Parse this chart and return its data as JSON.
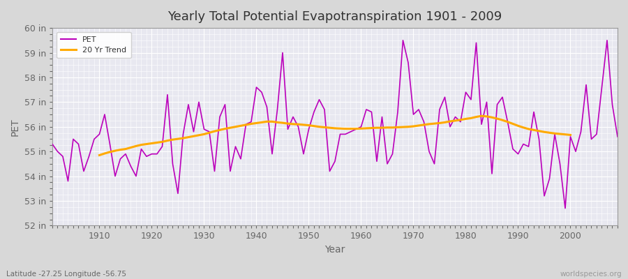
{
  "title": "Yearly Total Potential Evapotranspiration 1901 - 2009",
  "xlabel": "Year",
  "ylabel": "PET",
  "subtitle_left": "Latitude -27.25 Longitude -56.75",
  "watermark": "worldspecies.org",
  "ylim": [
    52,
    60
  ],
  "yticks": [
    52,
    53,
    54,
    55,
    56,
    57,
    58,
    59,
    60
  ],
  "ytick_labels": [
    "52 in",
    "53 in",
    "54 in",
    "55 in",
    "56 in",
    "57 in",
    "58 in",
    "59 in",
    "60 in"
  ],
  "xticks": [
    1910,
    1920,
    1930,
    1940,
    1950,
    1960,
    1970,
    1980,
    1990,
    2000
  ],
  "xlim": [
    1901,
    2009
  ],
  "pet_color": "#bb00bb",
  "trend_color": "#ffaa00",
  "fig_bg_color": "#d8d8d8",
  "plot_bg_color": "#e8e8f0",
  "grid_color": "#ffffff",
  "title_color": "#333333",
  "label_color": "#666666",
  "tick_color": "#666666",
  "years": [
    1901,
    1902,
    1903,
    1904,
    1905,
    1906,
    1907,
    1908,
    1909,
    1910,
    1911,
    1912,
    1913,
    1914,
    1915,
    1916,
    1917,
    1918,
    1919,
    1920,
    1921,
    1922,
    1923,
    1924,
    1925,
    1926,
    1927,
    1928,
    1929,
    1930,
    1931,
    1932,
    1933,
    1934,
    1935,
    1936,
    1937,
    1938,
    1939,
    1940,
    1941,
    1942,
    1943,
    1944,
    1945,
    1946,
    1947,
    1948,
    1949,
    1950,
    1951,
    1952,
    1953,
    1954,
    1955,
    1956,
    1957,
    1958,
    1959,
    1960,
    1961,
    1962,
    1963,
    1964,
    1965,
    1966,
    1967,
    1968,
    1969,
    1970,
    1971,
    1972,
    1973,
    1974,
    1975,
    1976,
    1977,
    1978,
    1979,
    1980,
    1981,
    1982,
    1983,
    1984,
    1985,
    1986,
    1987,
    1988,
    1989,
    1990,
    1991,
    1992,
    1993,
    1994,
    1995,
    1996,
    1997,
    1998,
    1999,
    2000,
    2001,
    2002,
    2003,
    2004,
    2005,
    2006,
    2007,
    2008,
    2009
  ],
  "pet_values": [
    55.3,
    55.0,
    54.8,
    53.8,
    55.5,
    55.3,
    54.2,
    54.8,
    55.5,
    55.7,
    56.5,
    55.3,
    54.0,
    54.7,
    54.9,
    54.4,
    54.0,
    55.1,
    54.8,
    54.9,
    54.9,
    55.2,
    57.3,
    54.5,
    53.3,
    55.7,
    56.9,
    55.8,
    57.0,
    55.9,
    55.8,
    54.2,
    56.4,
    56.9,
    54.2,
    55.2,
    54.7,
    56.1,
    56.2,
    57.6,
    57.4,
    56.8,
    54.9,
    56.7,
    59.0,
    55.9,
    56.4,
    56.0,
    54.9,
    55.9,
    56.6,
    57.1,
    56.7,
    54.2,
    54.6,
    55.7,
    55.7,
    55.8,
    55.9,
    56.0,
    56.7,
    56.6,
    54.6,
    56.4,
    54.5,
    54.9,
    56.6,
    59.5,
    58.6,
    56.5,
    56.7,
    56.2,
    55.0,
    54.5,
    56.7,
    57.2,
    56.0,
    56.4,
    56.2,
    57.4,
    57.1,
    59.4,
    56.1,
    57.0,
    54.1,
    56.9,
    57.2,
    56.2,
    55.1,
    54.9,
    55.3,
    55.2,
    56.6,
    55.5,
    53.2,
    53.9,
    55.7,
    54.5,
    52.7,
    55.6,
    55.0,
    55.8,
    57.7,
    55.5,
    55.7,
    57.6,
    59.5,
    56.9,
    55.6
  ],
  "trend_values_years": [
    1910,
    1911,
    1912,
    1913,
    1914,
    1915,
    1916,
    1917,
    1918,
    1919,
    1920,
    1921,
    1922,
    1923,
    1924,
    1925,
    1926,
    1927,
    1928,
    1929,
    1930,
    1931,
    1932,
    1933,
    1934,
    1935,
    1936,
    1937,
    1938,
    1939,
    1940,
    1941,
    1942,
    1943,
    1944,
    1945,
    1946,
    1947,
    1948,
    1949,
    1950,
    1951,
    1952,
    1953,
    1954,
    1955,
    1956,
    1957,
    1958,
    1959,
    1960,
    1961,
    1962,
    1963,
    1964,
    1965,
    1966,
    1967,
    1968,
    1969,
    1970,
    1971,
    1972,
    1973,
    1974,
    1975,
    1976,
    1977,
    1978,
    1979,
    1980,
    1981,
    1982,
    1983,
    1984,
    1985,
    1986,
    1987,
    1988,
    1989,
    1990,
    1991,
    1992,
    1993,
    1994,
    1995,
    1996,
    1997,
    1998,
    1999,
    2000
  ],
  "trend_values": [
    54.85,
    54.92,
    54.98,
    55.03,
    55.07,
    55.1,
    55.16,
    55.22,
    55.27,
    55.3,
    55.33,
    55.36,
    55.39,
    55.44,
    55.48,
    55.51,
    55.54,
    55.58,
    55.62,
    55.66,
    55.7,
    55.76,
    55.82,
    55.87,
    55.92,
    55.96,
    56.0,
    56.04,
    56.08,
    56.12,
    56.15,
    56.18,
    56.21,
    56.21,
    56.18,
    56.16,
    56.13,
    56.11,
    56.1,
    56.08,
    56.06,
    56.03,
    56.0,
    55.98,
    55.96,
    55.94,
    55.93,
    55.92,
    55.92,
    55.92,
    55.93,
    55.94,
    55.95,
    55.96,
    55.96,
    55.97,
    55.97,
    55.98,
    55.99,
    56.0,
    56.02,
    56.05,
    56.08,
    56.11,
    56.13,
    56.15,
    56.18,
    56.22,
    56.25,
    56.28,
    56.32,
    56.35,
    56.4,
    56.44,
    56.42,
    56.38,
    56.33,
    56.27,
    56.2,
    56.12,
    56.04,
    55.97,
    55.91,
    55.87,
    55.83,
    55.79,
    55.76,
    55.73,
    55.71,
    55.69,
    55.67
  ]
}
